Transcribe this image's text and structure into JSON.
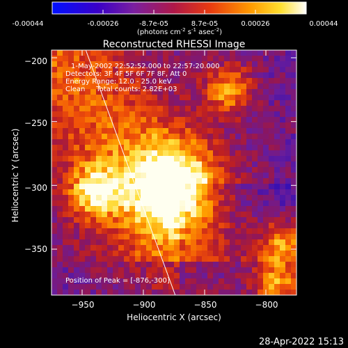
{
  "colorbar": {
    "ticks": [
      "-0.00044",
      "-0.00026",
      "-8.7e-05",
      "8.7e-05",
      "0.00026",
      "0.00044"
    ],
    "unit_prefix": "(photons cm",
    "unit_sup1": "-2",
    "unit_mid": " s",
    "unit_sup2": "-1",
    "unit_suffix": " asec",
    "unit_sup3": "-2",
    "unit_close": ")"
  },
  "chart_data": {
    "type": "heatmap",
    "title": "Reconstructed RHESSI Image",
    "xlabel": "Heliocentric X (arcsec)",
    "ylabel": "Heliocentric Y (arcsec)",
    "xlim": [
      -975,
      -775
    ],
    "ylim": [
      -386,
      -194
    ],
    "x_ticks": [
      -950,
      -900,
      -850,
      -800
    ],
    "y_ticks": [
      -200,
      -250,
      -300,
      -350
    ],
    "x_tick_labels": [
      "−950",
      "−900",
      "−850",
      "−800"
    ],
    "y_tick_labels": [
      "−200",
      "−250",
      "−300",
      "−350"
    ],
    "colormap": [
      "#0000ff",
      "#4b0082",
      "#7a1fa0",
      "#b02070",
      "#e03a20",
      "#ff7a00",
      "#ffd21a",
      "#ffffff"
    ],
    "value_range": [
      -0.00044,
      0.00044
    ],
    "limb_line": [
      [
        -947,
        -194
      ],
      [
        -874,
        -386
      ]
    ],
    "peak": {
      "x": -876,
      "y": -300
    },
    "secondary_sources": [
      {
        "x": -940,
        "y": -305
      },
      {
        "x": -830,
        "y": -225
      },
      {
        "x": -785,
        "y": -345
      },
      {
        "x": -790,
        "y": -378
      }
    ],
    "annotations": {
      "time_range": "1-May-2002 22:52:52.000 to 22:57:20.000",
      "detectors": "Detectors: 3F 4F 5F 6F 7F 8F, Att 0",
      "energy": "Energy Range: 12.0 - 25.0 keV",
      "clean": "Clean     Total counts: 2.82E+03",
      "peak_label": "Position of Peak = [-876,-300]"
    }
  },
  "footer": {
    "timestamp": "28-Apr-2022 15:13"
  }
}
